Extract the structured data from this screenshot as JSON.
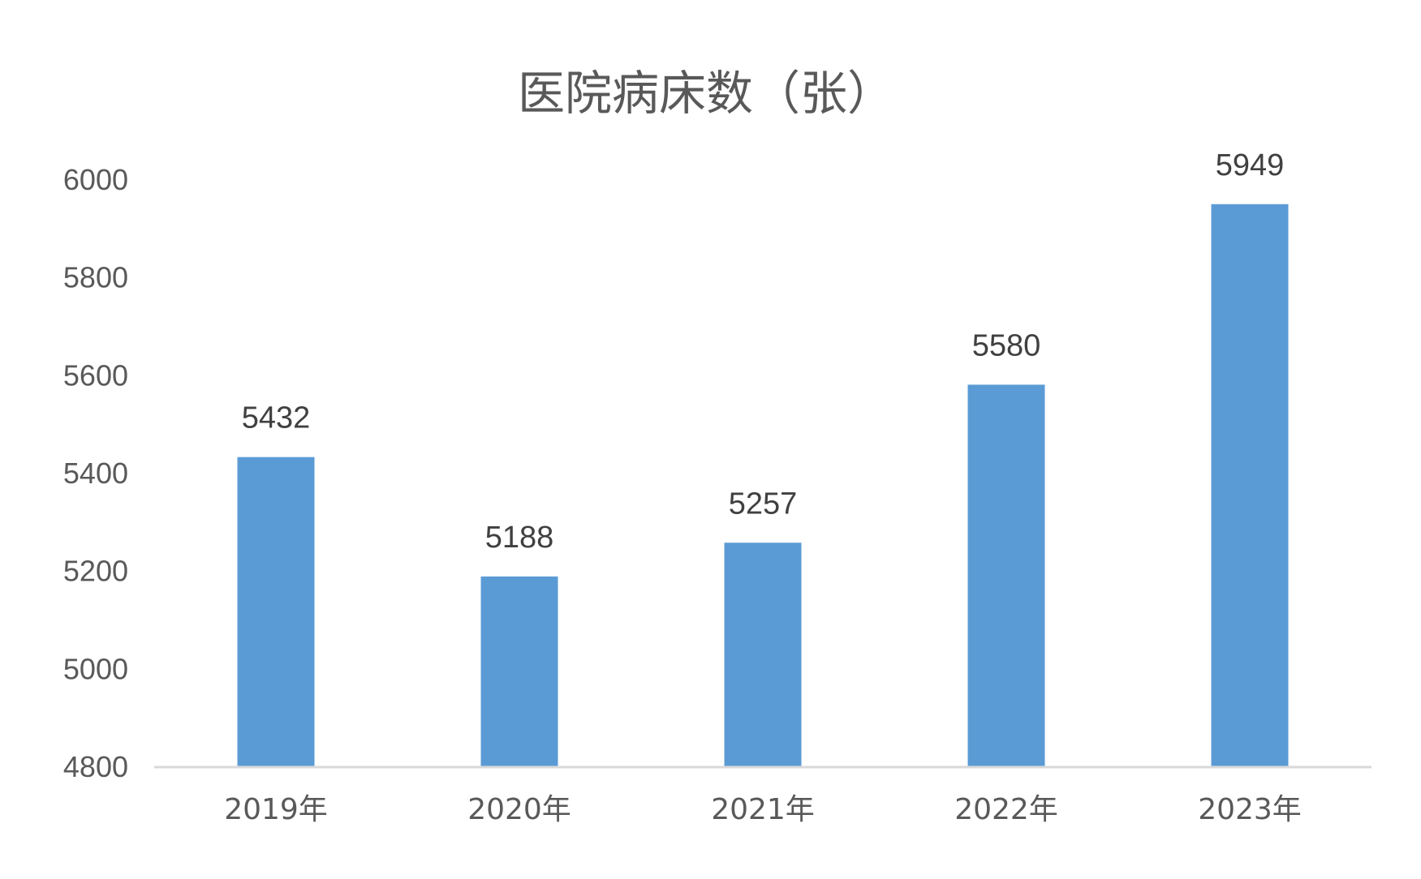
{
  "chart_data": {
    "type": "bar",
    "title": "医院病床数（张）",
    "xlabel": "",
    "ylabel": "",
    "categories": [
      "2019年",
      "2020年",
      "2021年",
      "2022年",
      "2023年"
    ],
    "values": [
      5432,
      5188,
      5257,
      5580,
      5949
    ],
    "data_labels": [
      "5432",
      "5188",
      "5257",
      "5580",
      "5949"
    ],
    "ylim": [
      4800,
      6000
    ],
    "yticks": [
      "4800",
      "5000",
      "5200",
      "5400",
      "5600",
      "5800",
      "6000"
    ],
    "grid": false,
    "legend": "none",
    "bar_color": "#5b9bd5",
    "axis_color": "#d9d9d9"
  }
}
